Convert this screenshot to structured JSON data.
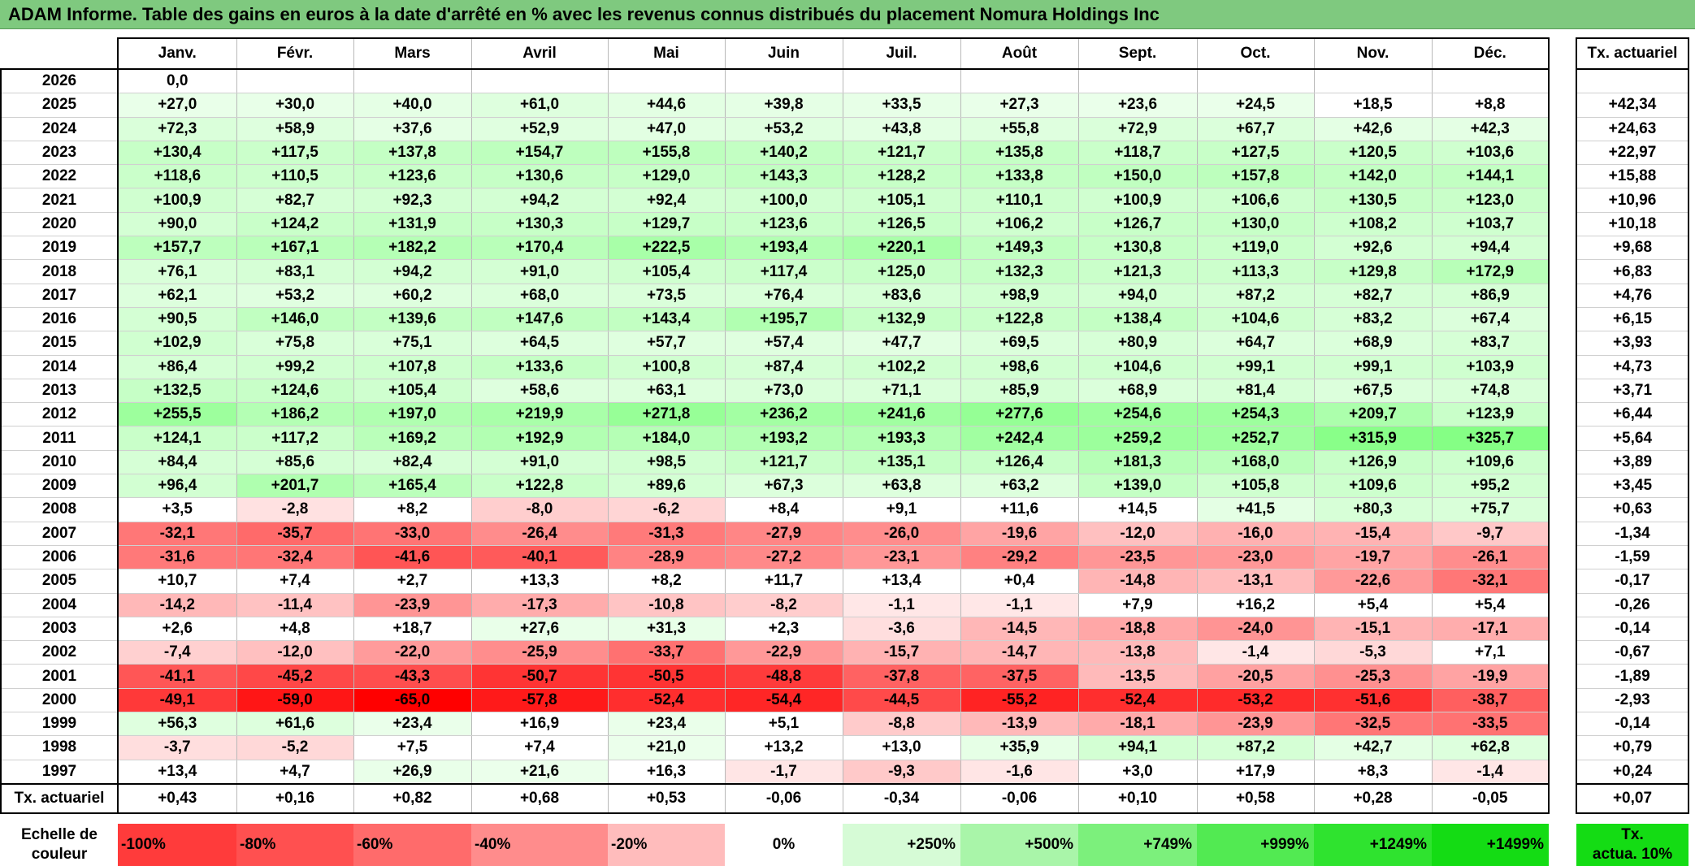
{
  "title": "ADAM Informe. Table des gains en euros à la date d'arrêté en % avec les revenus connus distribués du placement Nomura Holdings Inc",
  "months": [
    "Janv.",
    "Févr.",
    "Mars",
    "Avril",
    "Mai",
    "Juin",
    "Juil.",
    "Août",
    "Sept.",
    "Oct.",
    "Nov.",
    "Déc."
  ],
  "actuarial_header": "Tx. actuariel",
  "rows": [
    {
      "year": "2026",
      "values": [
        "0,0",
        "",
        "",
        "",
        "",
        "",
        "",
        "",
        "",
        "",
        "",
        ""
      ],
      "act": ""
    },
    {
      "year": "2025",
      "values": [
        "+27,0",
        "+30,0",
        "+40,0",
        "+61,0",
        "+44,6",
        "+39,8",
        "+33,5",
        "+27,3",
        "+23,6",
        "+24,5",
        "+18,5",
        "+8,8"
      ],
      "act": "+42,34"
    },
    {
      "year": "2024",
      "values": [
        "+72,3",
        "+58,9",
        "+37,6",
        "+52,9",
        "+47,0",
        "+53,2",
        "+43,8",
        "+55,8",
        "+72,9",
        "+67,7",
        "+42,6",
        "+42,3"
      ],
      "act": "+24,63"
    },
    {
      "year": "2023",
      "values": [
        "+130,4",
        "+117,5",
        "+137,8",
        "+154,7",
        "+155,8",
        "+140,2",
        "+121,7",
        "+135,8",
        "+118,7",
        "+127,5",
        "+120,5",
        "+103,6"
      ],
      "act": "+22,97"
    },
    {
      "year": "2022",
      "values": [
        "+118,6",
        "+110,5",
        "+123,6",
        "+130,6",
        "+129,0",
        "+143,3",
        "+128,2",
        "+133,8",
        "+150,0",
        "+157,8",
        "+142,0",
        "+144,1"
      ],
      "act": "+15,88"
    },
    {
      "year": "2021",
      "values": [
        "+100,9",
        "+82,7",
        "+92,3",
        "+94,2",
        "+92,4",
        "+100,0",
        "+105,1",
        "+110,1",
        "+100,9",
        "+106,6",
        "+130,5",
        "+123,0"
      ],
      "act": "+10,96"
    },
    {
      "year": "2020",
      "values": [
        "+90,0",
        "+124,2",
        "+131,9",
        "+130,3",
        "+129,7",
        "+123,6",
        "+126,5",
        "+106,2",
        "+126,7",
        "+130,0",
        "+108,2",
        "+103,7"
      ],
      "act": "+10,18"
    },
    {
      "year": "2019",
      "values": [
        "+157,7",
        "+167,1",
        "+182,2",
        "+170,4",
        "+222,5",
        "+193,4",
        "+220,1",
        "+149,3",
        "+130,8",
        "+119,0",
        "+92,6",
        "+94,4"
      ],
      "act": "+9,68"
    },
    {
      "year": "2018",
      "values": [
        "+76,1",
        "+83,1",
        "+94,2",
        "+91,0",
        "+105,4",
        "+117,4",
        "+125,0",
        "+132,3",
        "+121,3",
        "+113,3",
        "+129,8",
        "+172,9"
      ],
      "act": "+6,83"
    },
    {
      "year": "2017",
      "values": [
        "+62,1",
        "+53,2",
        "+60,2",
        "+68,0",
        "+73,5",
        "+76,4",
        "+83,6",
        "+98,9",
        "+94,0",
        "+87,2",
        "+82,7",
        "+86,9"
      ],
      "act": "+4,76"
    },
    {
      "year": "2016",
      "values": [
        "+90,5",
        "+146,0",
        "+139,6",
        "+147,6",
        "+143,4",
        "+195,7",
        "+132,9",
        "+122,8",
        "+138,4",
        "+104,6",
        "+83,2",
        "+67,4"
      ],
      "act": "+6,15"
    },
    {
      "year": "2015",
      "values": [
        "+102,9",
        "+75,8",
        "+75,1",
        "+64,5",
        "+57,7",
        "+57,4",
        "+47,7",
        "+69,5",
        "+80,9",
        "+64,7",
        "+68,9",
        "+83,7"
      ],
      "act": "+3,93"
    },
    {
      "year": "2014",
      "values": [
        "+86,4",
        "+99,2",
        "+107,8",
        "+133,6",
        "+100,8",
        "+87,4",
        "+102,2",
        "+98,6",
        "+104,6",
        "+99,1",
        "+99,1",
        "+103,9"
      ],
      "act": "+4,73"
    },
    {
      "year": "2013",
      "values": [
        "+132,5",
        "+124,6",
        "+105,4",
        "+58,6",
        "+63,1",
        "+73,0",
        "+71,1",
        "+85,9",
        "+68,9",
        "+81,4",
        "+67,5",
        "+74,8"
      ],
      "act": "+3,71"
    },
    {
      "year": "2012",
      "values": [
        "+255,5",
        "+186,2",
        "+197,0",
        "+219,9",
        "+271,8",
        "+236,2",
        "+241,6",
        "+277,6",
        "+254,6",
        "+254,3",
        "+209,7",
        "+123,9"
      ],
      "act": "+6,44"
    },
    {
      "year": "2011",
      "values": [
        "+124,1",
        "+117,2",
        "+169,2",
        "+192,9",
        "+184,0",
        "+193,2",
        "+193,3",
        "+242,4",
        "+259,2",
        "+252,7",
        "+315,9",
        "+325,7"
      ],
      "act": "+5,64"
    },
    {
      "year": "2010",
      "values": [
        "+84,4",
        "+85,6",
        "+82,4",
        "+91,0",
        "+98,5",
        "+121,7",
        "+135,1",
        "+126,4",
        "+181,3",
        "+168,0",
        "+126,9",
        "+109,6"
      ],
      "act": "+3,89"
    },
    {
      "year": "2009",
      "values": [
        "+96,4",
        "+201,7",
        "+165,4",
        "+122,8",
        "+89,6",
        "+67,3",
        "+63,8",
        "+63,2",
        "+139,0",
        "+105,8",
        "+109,6",
        "+95,2"
      ],
      "act": "+3,45"
    },
    {
      "year": "2008",
      "values": [
        "+3,5",
        "-2,8",
        "+8,2",
        "-8,0",
        "-6,2",
        "+8,4",
        "+9,1",
        "+11,6",
        "+14,5",
        "+41,5",
        "+80,3",
        "+75,7"
      ],
      "act": "+0,63"
    },
    {
      "year": "2007",
      "values": [
        "-32,1",
        "-35,7",
        "-33,0",
        "-26,4",
        "-31,3",
        "-27,9",
        "-26,0",
        "-19,6",
        "-12,0",
        "-16,0",
        "-15,4",
        "-9,7"
      ],
      "act": "-1,34"
    },
    {
      "year": "2006",
      "values": [
        "-31,6",
        "-32,4",
        "-41,6",
        "-40,1",
        "-28,9",
        "-27,2",
        "-23,1",
        "-29,2",
        "-23,5",
        "-23,0",
        "-19,7",
        "-26,1"
      ],
      "act": "-1,59"
    },
    {
      "year": "2005",
      "values": [
        "+10,7",
        "+7,4",
        "+2,7",
        "+13,3",
        "+8,2",
        "+11,7",
        "+13,4",
        "+0,4",
        "-14,8",
        "-13,1",
        "-22,6",
        "-32,1"
      ],
      "act": "-0,17"
    },
    {
      "year": "2004",
      "values": [
        "-14,2",
        "-11,4",
        "-23,9",
        "-17,3",
        "-10,8",
        "-8,2",
        "-1,1",
        "-1,1",
        "+7,9",
        "+16,2",
        "+5,4",
        "+5,4"
      ],
      "act": "-0,26"
    },
    {
      "year": "2003",
      "values": [
        "+2,6",
        "+4,8",
        "+18,7",
        "+27,6",
        "+31,3",
        "+2,3",
        "-3,6",
        "-14,5",
        "-18,8",
        "-24,0",
        "-15,1",
        "-17,1"
      ],
      "act": "-0,14"
    },
    {
      "year": "2002",
      "values": [
        "-7,4",
        "-12,0",
        "-22,0",
        "-25,9",
        "-33,7",
        "-22,9",
        "-15,7",
        "-14,7",
        "-13,8",
        "-1,4",
        "-5,3",
        "+7,1"
      ],
      "act": "-0,67"
    },
    {
      "year": "2001",
      "values": [
        "-41,1",
        "-45,2",
        "-43,3",
        "-50,7",
        "-50,5",
        "-48,8",
        "-37,8",
        "-37,5",
        "-13,5",
        "-20,5",
        "-25,3",
        "-19,9"
      ],
      "act": "-1,89"
    },
    {
      "year": "2000",
      "values": [
        "-49,1",
        "-59,0",
        "-65,0",
        "-57,8",
        "-52,4",
        "-54,4",
        "-44,5",
        "-55,2",
        "-52,4",
        "-53,2",
        "-51,6",
        "-38,7"
      ],
      "act": "-2,93"
    },
    {
      "year": "1999",
      "values": [
        "+56,3",
        "+61,6",
        "+23,4",
        "+16,9",
        "+23,4",
        "+5,1",
        "-8,8",
        "-13,9",
        "-18,1",
        "-23,9",
        "-32,5",
        "-33,5"
      ],
      "act": "-0,14"
    },
    {
      "year": "1998",
      "values": [
        "-3,7",
        "-5,2",
        "+7,5",
        "+7,4",
        "+21,0",
        "+13,2",
        "+13,0",
        "+35,9",
        "+94,1",
        "+87,2",
        "+42,7",
        "+62,8"
      ],
      "act": "+0,79"
    },
    {
      "year": "1997",
      "values": [
        "+13,4",
        "+4,7",
        "+26,9",
        "+21,6",
        "+16,3",
        "-1,7",
        "-9,3",
        "-1,6",
        "+3,0",
        "+17,9",
        "+8,3",
        "-1,4"
      ],
      "act": "+0,24"
    }
  ],
  "summary": {
    "label": "Tx. actuariel",
    "values": [
      "+0,43",
      "+0,16",
      "+0,82",
      "+0,68",
      "+0,53",
      "-0,06",
      "-0,34",
      "-0,06",
      "+0,10",
      "+0,58",
      "+0,28",
      "-0,05"
    ],
    "total": "+0,07"
  },
  "scale": {
    "label_line1": "Echelle de",
    "label_line2": "couleur",
    "items": [
      {
        "text": "-100%",
        "color": "#ff3b3b"
      },
      {
        "text": "-80%",
        "color": "#ff5050"
      },
      {
        "text": "-60%",
        "color": "#ff6b6b"
      },
      {
        "text": "-40%",
        "color": "#ff8c8c"
      },
      {
        "text": "-20%",
        "color": "#ffbcbc"
      },
      {
        "text": "0%",
        "color": "#ffffff"
      },
      {
        "text": "+250%",
        "color": "#d6fbd6"
      },
      {
        "text": "+500%",
        "color": "#a9f5a9"
      },
      {
        "text": "+749%",
        "color": "#7cf07c"
      },
      {
        "text": "+999%",
        "color": "#52ea52"
      },
      {
        "text": "+1249%",
        "color": "#2fe32f"
      },
      {
        "text": "+1499%",
        "color": "#14dc14"
      }
    ],
    "act_line1": "Tx.",
    "act_line2": "actua. 10%",
    "act_color": "#14dc14"
  }
}
